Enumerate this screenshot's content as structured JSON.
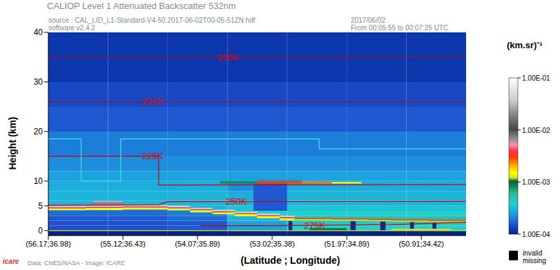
{
  "chart_data": {
    "type": "heatmap",
    "title": "CALIOP Level 1 Attenuated Backscatter 532nm",
    "subtitle": "source : CAL_LID_L1-Standard-V4-50.2017-06-02T00-05-51ZN.hdf",
    "annotations": [
      "software v2.4.2",
      "2017/06/02",
      "From 00:05:55 to 00:07:25 UTC",
      "Data: CNES/NASA - Image: ICARE",
      "icare"
    ],
    "x_label": "(Latitude ; Longitude)",
    "y_label": "Height (km)",
    "xlim": [
      0,
      5.6
    ],
    "xticks": [
      {
        "value": 0,
        "label": "(56.17;36.98)"
      },
      {
        "value": 1,
        "label": "(55.12;36.43)"
      },
      {
        "value": 2,
        "label": "(54.07;35.89)"
      },
      {
        "value": 3,
        "label": "(53.02;35.38)"
      },
      {
        "value": 4,
        "label": "(51.97;34.89)"
      },
      {
        "value": 5,
        "label": "(50.91;34.42)"
      }
    ],
    "ylim": [
      -1,
      40
    ],
    "yticks": [
      0,
      5,
      10,
      20,
      30,
      40
    ],
    "grid": false,
    "grid_cells": {
      "x_edges": [
        0,
        0.8,
        1.6,
        2.4,
        3.2,
        4.0,
        4.8,
        5.6
      ],
      "y_edges": [
        -1,
        0,
        1,
        2,
        3,
        4,
        5,
        6,
        8,
        10,
        12,
        15,
        20,
        25,
        30,
        40
      ],
      "values": [
        [
          0.0001,
          0.0001,
          0.0001,
          0.0001,
          0.0001,
          0.0001,
          0.0001
        ],
        [
          0.00015,
          0.00015,
          0.00016,
          0.00025,
          0.0004,
          0.0004,
          0.0004
        ],
        [
          0.00015,
          0.00015,
          0.00016,
          0.00025,
          0.00045,
          0.00045,
          0.00045
        ],
        [
          0.00016,
          0.00016,
          0.00018,
          0.0003,
          0.0005,
          0.0005,
          0.0005
        ],
        [
          0.00018,
          0.00018,
          0.0002,
          0.0004,
          0.0004,
          0.0004,
          0.0004
        ],
        [
          0.0002,
          0.0002,
          0.0003,
          0.00035,
          0.00035,
          0.00035,
          0.00035
        ],
        [
          0.0003,
          0.0003,
          0.0003,
          0.0003,
          0.0003,
          0.0003,
          0.0003
        ],
        [
          0.0003,
          0.0003,
          0.0003,
          0.00028,
          0.0003,
          0.0003,
          0.0003
        ],
        [
          0.00028,
          0.00028,
          0.00028,
          0.00022,
          0.00028,
          0.00028,
          0.00028
        ],
        [
          0.00025,
          0.00025,
          0.00025,
          0.00025,
          0.00025,
          0.00025,
          0.00025
        ],
        [
          0.00022,
          0.00022,
          0.00022,
          0.00022,
          0.00022,
          0.00022,
          0.00022
        ],
        [
          0.0002,
          0.0002,
          0.0002,
          0.0002,
          0.0002,
          0.0002,
          0.0002
        ],
        [
          0.00016,
          0.00016,
          0.00016,
          0.00016,
          0.00016,
          0.00016,
          0.00016
        ],
        [
          0.00014,
          0.00014,
          0.00014,
          0.00014,
          0.00014,
          0.00014,
          0.00014
        ],
        [
          0.00012,
          0.00012,
          0.00012,
          0.00012,
          0.00012,
          0.00012,
          0.00012
        ]
      ]
    },
    "cells": [
      {
        "x0": 2.75,
        "x1": 3.2,
        "y0": 4.0,
        "y1": 9.5,
        "value": 0.00016
      },
      {
        "x0": 0,
        "x1": 0.5,
        "y0": 4.1,
        "y1": 4.5,
        "value": 0.0015
      },
      {
        "x0": 0,
        "x1": 0.5,
        "y0": 4.5,
        "y1": 4.75,
        "value": 0.004
      },
      {
        "x0": 0,
        "x1": 0.5,
        "y0": 4.75,
        "y1": 5.0,
        "value": 0.05
      },
      {
        "x0": 0.5,
        "x1": 1.0,
        "y0": 4.15,
        "y1": 4.55,
        "value": 0.0015
      },
      {
        "x0": 0.5,
        "x1": 1.0,
        "y0": 4.55,
        "y1": 4.8,
        "value": 0.004
      },
      {
        "x0": 0.5,
        "x1": 1.0,
        "y0": 4.8,
        "y1": 5.05,
        "value": 0.05
      },
      {
        "x0": 1.0,
        "x1": 1.6,
        "y0": 4.25,
        "y1": 4.65,
        "value": 0.0015
      },
      {
        "x0": 1.0,
        "x1": 1.6,
        "y0": 4.65,
        "y1": 4.9,
        "value": 0.004
      },
      {
        "x0": 1.0,
        "x1": 1.6,
        "y0": 4.9,
        "y1": 5.15,
        "value": 0.05
      },
      {
        "x0": 1.6,
        "x1": 1.9,
        "y0": 4.1,
        "y1": 4.5,
        "value": 0.0015
      },
      {
        "x0": 1.6,
        "x1": 1.9,
        "y0": 4.5,
        "y1": 4.75,
        "value": 0.004
      },
      {
        "x0": 1.6,
        "x1": 1.9,
        "y0": 4.75,
        "y1": 5.0,
        "value": 0.05
      },
      {
        "x0": 1.9,
        "x1": 2.2,
        "y0": 3.7,
        "y1": 4.1,
        "value": 0.0015
      },
      {
        "x0": 1.9,
        "x1": 2.2,
        "y0": 4.1,
        "y1": 4.35,
        "value": 0.004
      },
      {
        "x0": 1.9,
        "x1": 2.2,
        "y0": 4.35,
        "y1": 4.6,
        "value": 0.05
      },
      {
        "x0": 2.2,
        "x1": 2.5,
        "y0": 3.3,
        "y1": 3.7,
        "value": 0.0015
      },
      {
        "x0": 2.2,
        "x1": 2.5,
        "y0": 3.7,
        "y1": 3.95,
        "value": 0.004
      },
      {
        "x0": 2.2,
        "x1": 2.5,
        "y0": 3.95,
        "y1": 4.2,
        "value": 0.05
      },
      {
        "x0": 2.5,
        "x1": 2.8,
        "y0": 2.9,
        "y1": 3.3,
        "value": 0.0015
      },
      {
        "x0": 2.5,
        "x1": 2.8,
        "y0": 3.3,
        "y1": 3.55,
        "value": 0.004
      },
      {
        "x0": 2.5,
        "x1": 2.8,
        "y0": 3.55,
        "y1": 3.8,
        "value": 0.05
      },
      {
        "x0": 2.8,
        "x1": 3.1,
        "y0": 2.5,
        "y1": 2.9,
        "value": 0.0015
      },
      {
        "x0": 2.8,
        "x1": 3.1,
        "y0": 2.9,
        "y1": 3.15,
        "value": 0.004
      },
      {
        "x0": 2.8,
        "x1": 3.1,
        "y0": 3.15,
        "y1": 3.4,
        "value": 0.05
      },
      {
        "x0": 3.1,
        "x1": 3.3,
        "y0": 2.1,
        "y1": 2.5,
        "value": 0.0015
      },
      {
        "x0": 3.1,
        "x1": 3.3,
        "y0": 2.5,
        "y1": 2.75,
        "value": 0.004
      },
      {
        "x0": 3.1,
        "x1": 3.3,
        "y0": 2.75,
        "y1": 3.0,
        "value": 0.05
      },
      {
        "x0": 3.3,
        "x1": 3.8,
        "y0": 2.1,
        "y1": 2.35,
        "value": 0.0012
      },
      {
        "x0": 3.3,
        "x1": 3.8,
        "y0": 2.35,
        "y1": 2.55,
        "value": 0.003
      },
      {
        "x0": 3.3,
        "x1": 3.8,
        "y0": 2.55,
        "y1": 2.7,
        "value": 0.02
      },
      {
        "x0": 3.8,
        "x1": 4.3,
        "y0": 2.0,
        "y1": 2.25,
        "value": 0.0012
      },
      {
        "x0": 3.8,
        "x1": 4.3,
        "y0": 2.25,
        "y1": 2.45,
        "value": 0.003
      },
      {
        "x0": 3.8,
        "x1": 4.3,
        "y0": 2.45,
        "y1": 2.6,
        "value": 0.02
      },
      {
        "x0": 4.3,
        "x1": 4.6,
        "y0": 1.9,
        "y1": 2.15,
        "value": 0.0012
      },
      {
        "x0": 4.3,
        "x1": 4.6,
        "y0": 2.15,
        "y1": 2.35,
        "value": 0.003
      },
      {
        "x0": 4.3,
        "x1": 4.6,
        "y0": 2.35,
        "y1": 2.5,
        "value": 0.02
      },
      {
        "x0": 4.6,
        "x1": 5.1,
        "y0": 1.8,
        "y1": 2.05,
        "value": 0.0012
      },
      {
        "x0": 4.6,
        "x1": 5.1,
        "y0": 2.05,
        "y1": 2.25,
        "value": 0.003
      },
      {
        "x0": 4.6,
        "x1": 5.1,
        "y0": 2.25,
        "y1": 2.4,
        "value": 0.02
      },
      {
        "x0": 5.1,
        "x1": 5.6,
        "y0": 1.7,
        "y1": 1.95,
        "value": 0.0012
      },
      {
        "x0": 5.1,
        "x1": 5.6,
        "y0": 1.95,
        "y1": 2.15,
        "value": 0.003
      },
      {
        "x0": 5.1,
        "x1": 5.6,
        "y0": 2.15,
        "y1": 2.3,
        "value": 0.02
      },
      {
        "x0": 0.6,
        "x1": 1.0,
        "y0": 5.45,
        "y1": 5.7,
        "value": 0.004
      },
      {
        "x0": 0.6,
        "x1": 1.0,
        "y0": 5.7,
        "y1": 5.95,
        "value": 0.03
      },
      {
        "x0": 2.3,
        "x1": 2.8,
        "y0": 9.5,
        "y1": 10.0,
        "value": 0.0008
      },
      {
        "x0": 2.8,
        "x1": 3.4,
        "y0": 9.5,
        "y1": 9.9,
        "value": 0.003
      },
      {
        "x0": 2.8,
        "x1": 3.4,
        "y0": 9.9,
        "y1": 10.2,
        "value": 0.008
      },
      {
        "x0": 3.4,
        "x1": 3.8,
        "y0": 9.5,
        "y1": 9.9,
        "value": 0.0025
      },
      {
        "x0": 3.8,
        "x1": 4.2,
        "y0": 9.5,
        "y1": 9.8,
        "value": 0.0015
      },
      {
        "x0": 3.22,
        "x1": 3.27,
        "y0": 0,
        "y1": 1.9,
        "value": 0.0001
      },
      {
        "x0": 4.05,
        "x1": 4.12,
        "y0": 0,
        "y1": 1.9,
        "value": 0.0001
      },
      {
        "x0": 4.45,
        "x1": 4.52,
        "y0": 0,
        "y1": 1.8,
        "value": 0.0001
      },
      {
        "x0": 4.85,
        "x1": 4.9,
        "y0": 0,
        "y1": 1.7,
        "value": 0.0001
      },
      {
        "x0": 5.15,
        "x1": 5.2,
        "y0": 0,
        "y1": 1.6,
        "value": 0.0001
      },
      {
        "x0": 3.5,
        "x1": 4.0,
        "y0": 0,
        "y1": 0.5,
        "value": 0.0009
      },
      {
        "x0": 4.6,
        "x1": 5.4,
        "y0": 0,
        "y1": 0.4,
        "value": 0.0012
      }
    ],
    "series": [
      {
        "type": "line",
        "label": "250K",
        "color": "#d00000",
        "x": [
          0,
          5.6
        ],
        "values": [
          35,
          35
        ]
      },
      {
        "type": "line",
        "label": "225K",
        "color": "#d00000",
        "x": [
          0,
          5.6
        ],
        "values": [
          26,
          26
        ]
      },
      {
        "type": "line",
        "label": "225K",
        "color": "#d00000",
        "x": [
          0,
          1.48,
          1.48,
          5.6
        ],
        "values": [
          15,
          15,
          9.2,
          9.3
        ]
      },
      {
        "type": "line",
        "label": "250K",
        "color": "#d00000",
        "x": [
          0,
          1.48,
          1.6,
          5.6
        ],
        "values": [
          5.1,
          5.2,
          5.85,
          5.9
        ]
      },
      {
        "type": "line",
        "label": "275K",
        "color": "#d00000",
        "x": [
          2.04,
          3.0,
          4.6,
          5.6
        ],
        "values": [
          1.0,
          1.0,
          1.2,
          1.7
        ]
      },
      {
        "type": "line",
        "color": "#40e0e0",
        "x": [
          0,
          0.44,
          0.44,
          0.97,
          0.97,
          3.63,
          3.63,
          5.6
        ],
        "values": [
          18.5,
          18.5,
          10,
          10,
          18.5,
          18.5,
          16.5,
          16.5
        ]
      },
      {
        "type": "line",
        "color": "#e8e800",
        "x": [
          0,
          5.6
        ],
        "values": [
          0,
          0
        ]
      }
    ],
    "colorbar": {
      "label": "(km.sr)⁻¹",
      "log": true,
      "range": [
        0.0001,
        0.1
      ],
      "ticks": [
        {
          "value": 0.1,
          "label": "1.00E-01"
        },
        {
          "value": 0.01,
          "label": "1.00E-02"
        },
        {
          "value": 0.001,
          "label": "1.00E-03"
        },
        {
          "value": 0.0001,
          "label": "1.00E-04"
        }
      ]
    },
    "missing": {
      "labels": [
        "invalid",
        "missing"
      ],
      "color": "#000000"
    }
  }
}
